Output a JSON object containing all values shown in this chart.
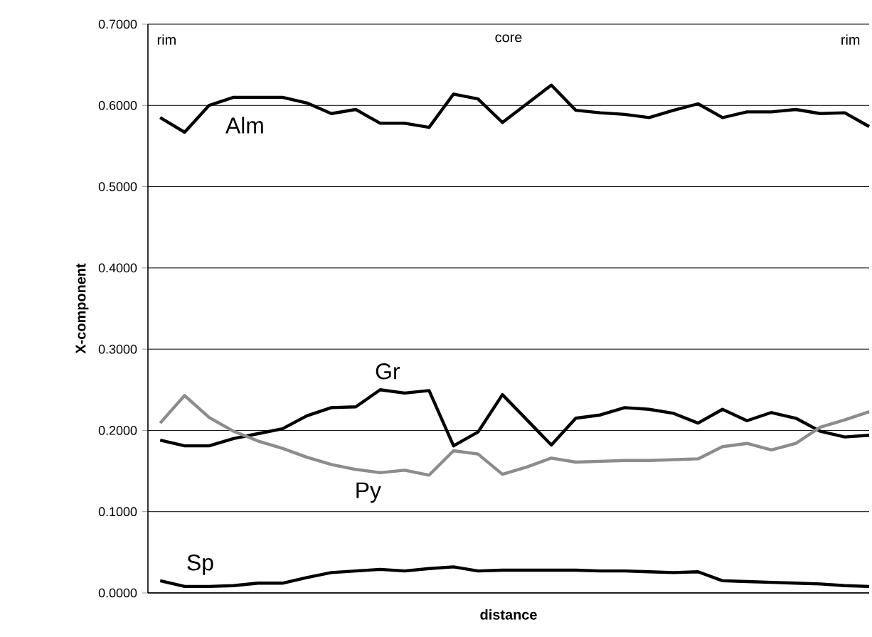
{
  "chart_data": {
    "type": "line",
    "xlabel": "distance",
    "ylabel": "X-component",
    "annotations": [
      "rim",
      "core",
      "rim"
    ],
    "categories": [
      null,
      null,
      null,
      null,
      null,
      null,
      null,
      null,
      null,
      null,
      null,
      null,
      null,
      null,
      null,
      null,
      null,
      null,
      null,
      null,
      null,
      null,
      null,
      null,
      null,
      null,
      null,
      null,
      null,
      null
    ],
    "series": [
      {
        "name": "Alm",
        "color": "#000000",
        "values": [
          0.585,
          0.567,
          0.6,
          0.61,
          0.61,
          0.61,
          0.603,
          0.59,
          0.595,
          0.578,
          0.578,
          0.573,
          0.614,
          0.608,
          0.579,
          0.602,
          0.625,
          0.594,
          0.591,
          0.589,
          0.585,
          0.594,
          0.602,
          0.585,
          0.592,
          0.592,
          0.595,
          0.59,
          0.591,
          0.574
        ]
      },
      {
        "name": "Gr",
        "color": "#000000",
        "values": [
          0.188,
          0.181,
          0.181,
          0.19,
          0.196,
          0.202,
          0.218,
          0.228,
          0.229,
          0.25,
          0.246,
          0.249,
          0.181,
          0.198,
          0.244,
          0.213,
          0.182,
          0.215,
          0.219,
          0.228,
          0.226,
          0.221,
          0.209,
          0.226,
          0.212,
          0.222,
          0.215,
          0.199,
          0.192,
          0.194
        ]
      },
      {
        "name": "Py",
        "color": "#8c8c8c",
        "values": [
          0.209,
          0.243,
          0.216,
          0.199,
          0.187,
          0.178,
          0.167,
          0.158,
          0.152,
          0.148,
          0.151,
          0.145,
          0.175,
          0.171,
          0.146,
          0.155,
          0.166,
          0.161,
          0.162,
          0.163,
          0.163,
          0.164,
          0.165,
          0.18,
          0.184,
          0.176,
          0.184,
          0.204,
          0.213,
          0.223
        ]
      },
      {
        "name": "Sp",
        "color": "#000000",
        "values": [
          0.015,
          0.008,
          0.008,
          0.009,
          0.012,
          0.012,
          0.019,
          0.025,
          0.027,
          0.029,
          0.027,
          0.03,
          0.032,
          0.027,
          0.028,
          0.028,
          0.028,
          0.028,
          0.027,
          0.027,
          0.026,
          0.025,
          0.026,
          0.015,
          0.014,
          0.013,
          0.012,
          0.011,
          0.009,
          0.008
        ]
      }
    ],
    "ylim": [
      0,
      0.7
    ],
    "yticks": [
      {
        "value": 0,
        "label": "0.0000"
      },
      {
        "value": 0.1,
        "label": "0.1000"
      },
      {
        "value": 0.2,
        "label": "0.2000"
      },
      {
        "value": 0.3,
        "label": "0.3000"
      },
      {
        "value": 0.4,
        "label": "0.4000"
      },
      {
        "value": 0.5,
        "label": "0.5000"
      },
      {
        "value": 0.6,
        "label": "0.6000"
      },
      {
        "value": 0.7,
        "label": "0.7000"
      }
    ],
    "grid": "y",
    "legend": false,
    "marker": "none",
    "line_style": "solid"
  }
}
